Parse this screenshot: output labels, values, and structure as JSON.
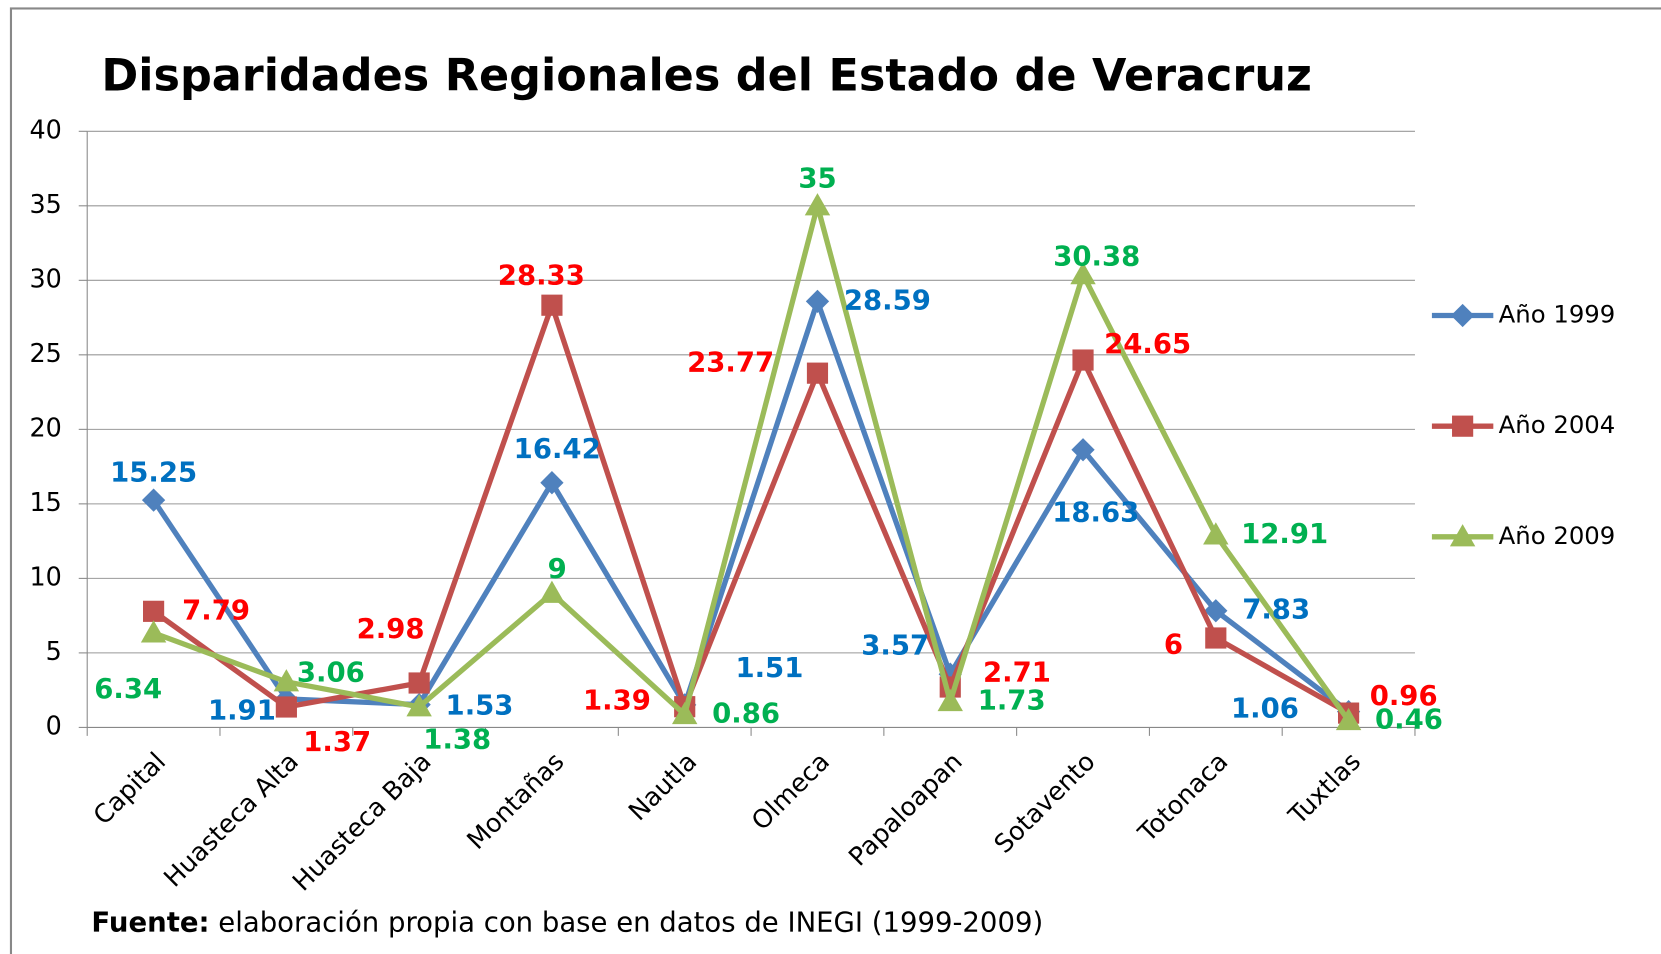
{
  "chart_data": {
    "type": "line",
    "title": "Disparidades Regionales del Estado de Veracruz",
    "categories": [
      "Capital",
      "Huasteca Alta",
      "Huasteca Baja",
      "Montañas",
      "Nautla",
      "Olmeca",
      "Papaloapan",
      "Sotavento",
      "Totonaca",
      "Tuxtlas"
    ],
    "series": [
      {
        "name": "Año 1999",
        "color": "#4f81bd",
        "label_color": "#0070c0",
        "marker": "diamond",
        "values": [
          15.25,
          1.91,
          1.53,
          16.42,
          1.51,
          28.59,
          3.57,
          18.63,
          7.83,
          1.06
        ]
      },
      {
        "name": "Año 2004",
        "color": "#c0504d",
        "label_color": "#ff0000",
        "marker": "square",
        "values": [
          7.79,
          1.37,
          2.98,
          28.33,
          1.39,
          23.77,
          2.71,
          24.65,
          6,
          0.96
        ]
      },
      {
        "name": "Año 2009",
        "color": "#9bbb59",
        "label_color": "#00b050",
        "marker": "triangle",
        "values": [
          6.34,
          3.06,
          1.38,
          9,
          0.86,
          35,
          1.73,
          30.38,
          12.91,
          0.46
        ]
      }
    ],
    "ylim": [
      0,
      40
    ],
    "yticks": [
      0,
      5,
      10,
      15,
      20,
      25,
      30,
      35,
      40
    ],
    "grid": true,
    "legend": "right",
    "source_label": "Fuente:",
    "source_text": "elaboración propia con base en datos de INEGI (1999-2009)"
  }
}
